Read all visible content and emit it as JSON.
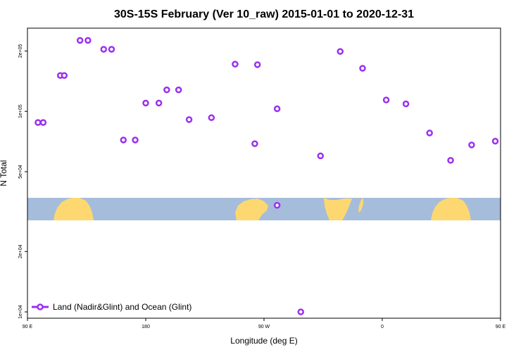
{
  "chart_data": {
    "type": "scatter",
    "title": "30S-15S February (Ver 10_raw)   2015-01-01 to 2020-12-31",
    "xlabel": "Longitude (deg E)",
    "ylabel": "N Total",
    "x_ticks": [
      "90 E",
      "180",
      "90 W",
      "0",
      "90 E",
      "180"
    ],
    "y_ticks": [
      "1e+04",
      "2e+04",
      "5e+04",
      "1e+05",
      "2e+05"
    ],
    "y_scale": "log",
    "grid": false,
    "legend": {
      "position": "bottom-left",
      "entries": [
        "Land (Nadir&Glint) and Ocean (Glint)"
      ]
    },
    "colors": {
      "series": "#9b30f0",
      "ocean": "#a6bcdb",
      "land": "#fdd870"
    },
    "series": [
      {
        "name": "Land (Nadir&Glint) and Ocean (Glint)",
        "x": [
          98,
          115,
          130,
          148,
          163,
          180,
          196,
          213,
          230,
          248,
          265,
          280,
          -97,
          -80,
          -62,
          -47,
          -32,
          -15,
          3,
          18,
          36,
          52,
          68,
          86,
          102,
          118,
          136,
          154,
          172,
          190,
          205
        ],
        "y": [
          88000,
          151000,
          226000,
          204000,
          72000,
          110000,
          128000,
          91000,
          93000,
          172000,
          171000,
          103000,
          69000,
          34000,
          10000,
          60000,
          199000,
          164000,
          114000,
          109000,
          78000,
          57000,
          68000,
          71000,
          88000,
          151000,
          226000,
          204000,
          72000,
          110000,
          128000
        ]
      }
    ]
  }
}
